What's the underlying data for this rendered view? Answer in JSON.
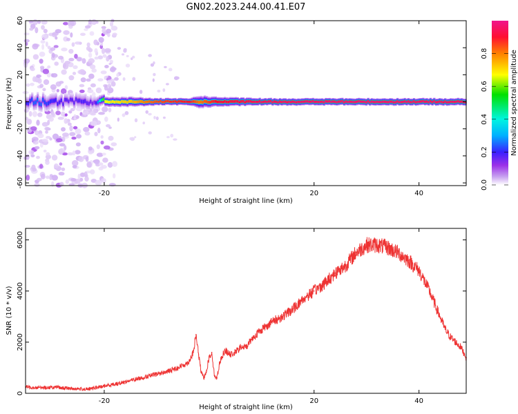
{
  "title": "GN02.2023.244.00.41.E07",
  "colors": {
    "background": "#ffffff",
    "snr_line": "#ee3333",
    "frame": "#000000",
    "colormap": [
      "#ffffff",
      "#c8a2f0",
      "#9b30e8",
      "#3a20ff",
      "#00b0ff",
      "#00f5e0",
      "#00e000",
      "#ffff00",
      "#ff8000",
      "#ff1030",
      "#f0148c"
    ]
  },
  "chart_data": [
    {
      "type": "heatmap",
      "name": "spectrogram",
      "xlabel": "Height of straight line (km)",
      "ylabel": "Frequency (Hz)",
      "xlim": [
        -35,
        49
      ],
      "ylim": [
        -62,
        60
      ],
      "xticks": [
        -20,
        20,
        40
      ],
      "yticks": [
        -60,
        -40,
        -20,
        0,
        20,
        40,
        60
      ],
      "grid": false,
      "colorbar": {
        "label": "Normalized spectral amplitude",
        "range": [
          0,
          1
        ],
        "ticks": [
          "0.0",
          "0.2",
          "0.4",
          "0.6",
          "0.8"
        ]
      },
      "carrier_frequency": 0,
      "main_band": [
        {
          "x": -35,
          "halfwidth": 4,
          "amp": 0.3
        },
        {
          "x": -33,
          "halfwidth": 5,
          "amp": 0.35
        },
        {
          "x": -30,
          "halfwidth": 5,
          "amp": 0.3
        },
        {
          "x": -27,
          "halfwidth": 4,
          "amp": 0.25
        },
        {
          "x": -24,
          "halfwidth": 5,
          "amp": 0.28
        },
        {
          "x": -22,
          "halfwidth": 4,
          "amp": 0.22
        },
        {
          "x": -20,
          "halfwidth": 3,
          "amp": 0.7
        },
        {
          "x": -15,
          "halfwidth": 3,
          "amp": 0.75
        },
        {
          "x": -10,
          "halfwidth": 2,
          "amp": 0.85
        },
        {
          "x": -4,
          "halfwidth": 2,
          "amp": 0.9
        },
        {
          "x": -2,
          "halfwidth": 4,
          "amp": 0.8
        },
        {
          "x": 1,
          "halfwidth": 3,
          "amp": 0.9
        },
        {
          "x": 10,
          "halfwidth": 2,
          "amp": 0.95
        },
        {
          "x": 30,
          "halfwidth": 2,
          "amp": 0.97
        },
        {
          "x": 49,
          "halfwidth": 2,
          "amp": 0.95
        }
      ],
      "noise_region": {
        "x_from": -35,
        "x_to": -20,
        "y_from": -62,
        "y_to": 60
      }
    },
    {
      "type": "line",
      "name": "snr",
      "xlabel": "Height of straight line (km)",
      "ylabel": "SNR (10 * v/v)",
      "xlim": [
        -35,
        49
      ],
      "ylim": [
        0,
        6450
      ],
      "xticks": [
        -20,
        20,
        40
      ],
      "yticks": [
        0,
        2000,
        4000,
        6000
      ],
      "grid": false,
      "series": [
        {
          "x": [
            -35,
            -32,
            -29,
            -26,
            -23,
            -20,
            -17,
            -14,
            -11,
            -8,
            -6,
            -4,
            -3,
            -2.5,
            -2,
            -1.5,
            -1,
            -0.5,
            0,
            0.5,
            1,
            1.5,
            2,
            3,
            4,
            5,
            6,
            7,
            8,
            10,
            12,
            14,
            16,
            18,
            20,
            22,
            24,
            26,
            28,
            30,
            32,
            34,
            36,
            38,
            40,
            41,
            42,
            43,
            44,
            45,
            46,
            47,
            48,
            49
          ],
          "y": [
            250,
            220,
            230,
            180,
            160,
            280,
            400,
            550,
            700,
            850,
            1000,
            1200,
            1600,
            2300,
            1500,
            800,
            600,
            900,
            1400,
            1600,
            700,
            600,
            1200,
            1700,
            1500,
            1600,
            1800,
            1800,
            2100,
            2500,
            2800,
            3000,
            3300,
            3700,
            4000,
            4300,
            4700,
            5000,
            5500,
            5800,
            5800,
            5700,
            5500,
            5200,
            4800,
            4400,
            4000,
            3500,
            3000,
            2500,
            2200,
            2000,
            1800,
            1400
          ]
        }
      ]
    }
  ]
}
